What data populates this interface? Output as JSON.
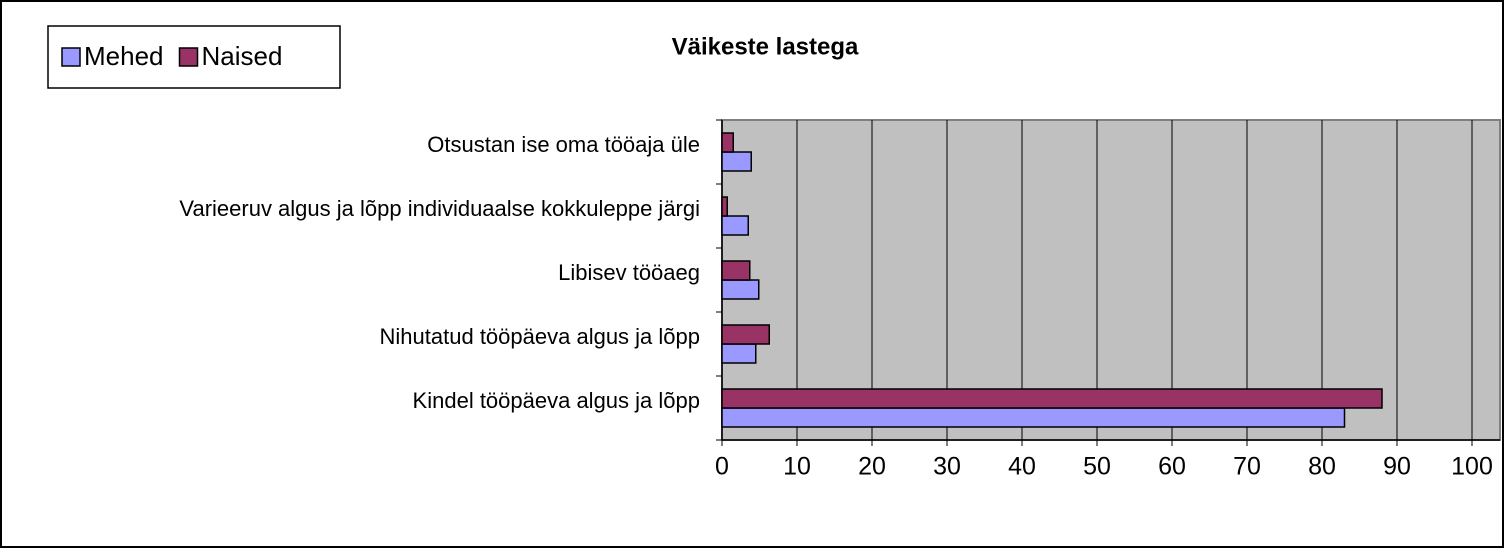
{
  "chart_data": {
    "type": "bar",
    "orientation": "horizontal",
    "title": "Väikeste lastega",
    "categories": [
      "Otsustan ise oma tööaja üle",
      "Varieeruv algus ja lõpp individuaalse kokkuleppe järgi",
      "Libisev tööaeg",
      "Nihutatud tööpäeva algus ja lõpp",
      "Kindel tööpäeva algus ja lõpp"
    ],
    "series": [
      {
        "name": "Mehed",
        "color": "#9999ff",
        "values": [
          3.9,
          3.5,
          4.9,
          4.5,
          83
        ]
      },
      {
        "name": "Naised",
        "color": "#993366",
        "values": [
          1.5,
          0.7,
          3.7,
          6.3,
          88
        ]
      }
    ],
    "xlim": [
      0,
      100
    ],
    "xticks": [
      0,
      10,
      20,
      30,
      40,
      50,
      60,
      70,
      80,
      90,
      100
    ],
    "grid": true,
    "legend": "top-left"
  }
}
